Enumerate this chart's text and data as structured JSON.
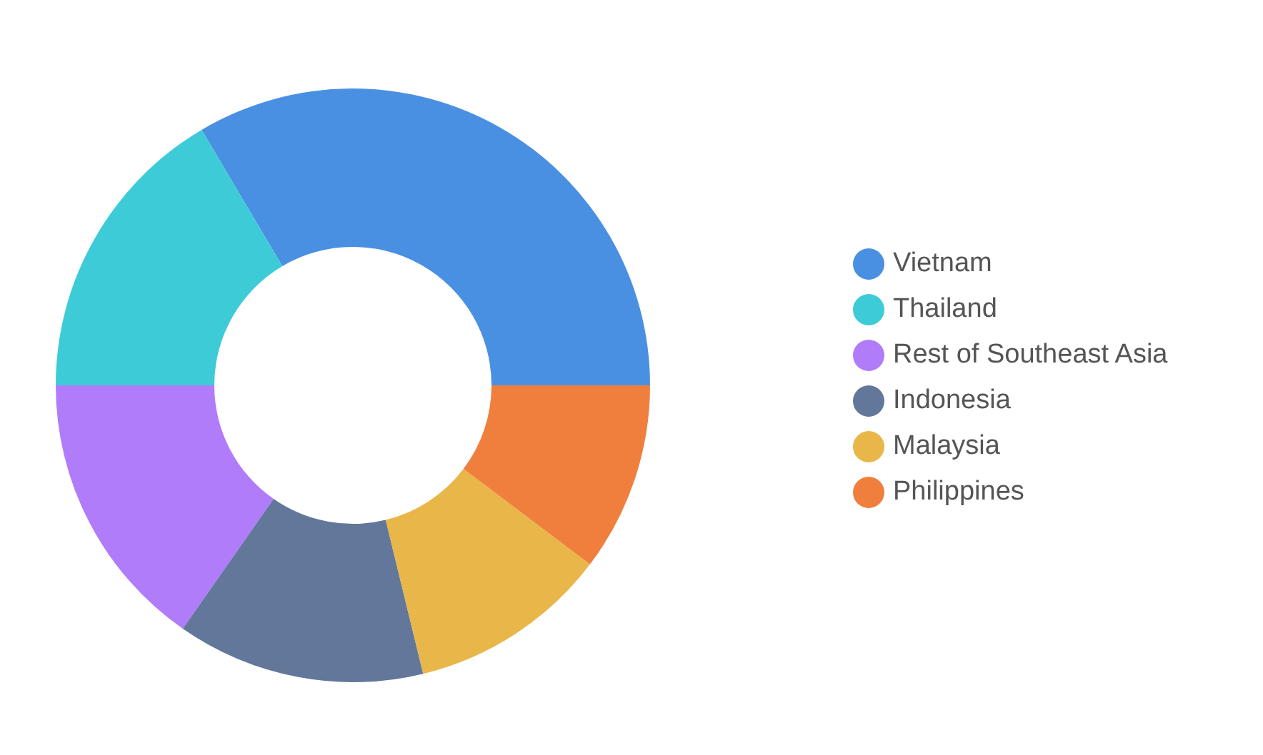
{
  "chart_data": {
    "type": "donut",
    "categories": [
      "Vietnam",
      "Thailand",
      "Rest of Southeast Asia",
      "Indonesia",
      "Malaysia",
      "Philippines"
    ],
    "values": [
      33.5,
      16.5,
      15.3,
      13.5,
      10.9,
      10.3
    ],
    "colors": [
      "#4a90e2",
      "#3ecbd8",
      "#b07cfa",
      "#63779b",
      "#e9b649",
      "#f07f3d"
    ],
    "legend": "right"
  }
}
